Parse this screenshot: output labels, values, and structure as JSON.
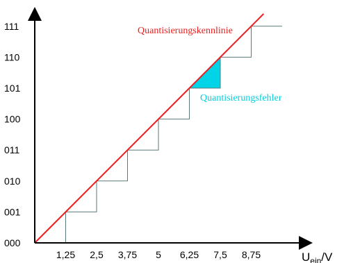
{
  "chart_data": {
    "type": "line",
    "x_ticks": [
      "1,25",
      "2,5",
      "3,75",
      "5",
      "6,25",
      "7,5",
      "8,75"
    ],
    "y_ticks": [
      "000",
      "001",
      "010",
      "011",
      "100",
      "101",
      "110",
      "111"
    ],
    "x_tick_values": [
      1.25,
      2.5,
      3.75,
      5,
      6.25,
      7.5,
      8.75
    ],
    "xlabel": {
      "main": "U",
      "sub": "ein",
      "unit": "/V"
    },
    "ylabel": "",
    "xlim": [
      0,
      10
    ],
    "ylim": [
      0,
      8
    ],
    "series": [
      {
        "name": "Quantisierungskennlinie",
        "kind": "ideal",
        "color": "#ee1c1c",
        "x": [
          0,
          9.25
        ],
        "y": [
          0,
          7.4
        ]
      },
      {
        "kind": "staircase",
        "color": "#5a7a7a",
        "x": [
          1.25,
          2.5,
          3.75,
          5,
          6.25,
          7.5,
          8.75,
          10
        ],
        "y": [
          1,
          2,
          3,
          4,
          5,
          6,
          7,
          7
        ]
      }
    ],
    "annotations": [
      {
        "text": "Quantisierungskennlinie",
        "color": "#ee1c1c"
      },
      {
        "text": "Quantisierungsfehler",
        "color": "#00cfe0",
        "shaded_triangle": {
          "x": [
            6.25,
            7.5,
            7.5
          ],
          "y": [
            5,
            5,
            6
          ]
        }
      }
    ],
    "grid": false
  }
}
